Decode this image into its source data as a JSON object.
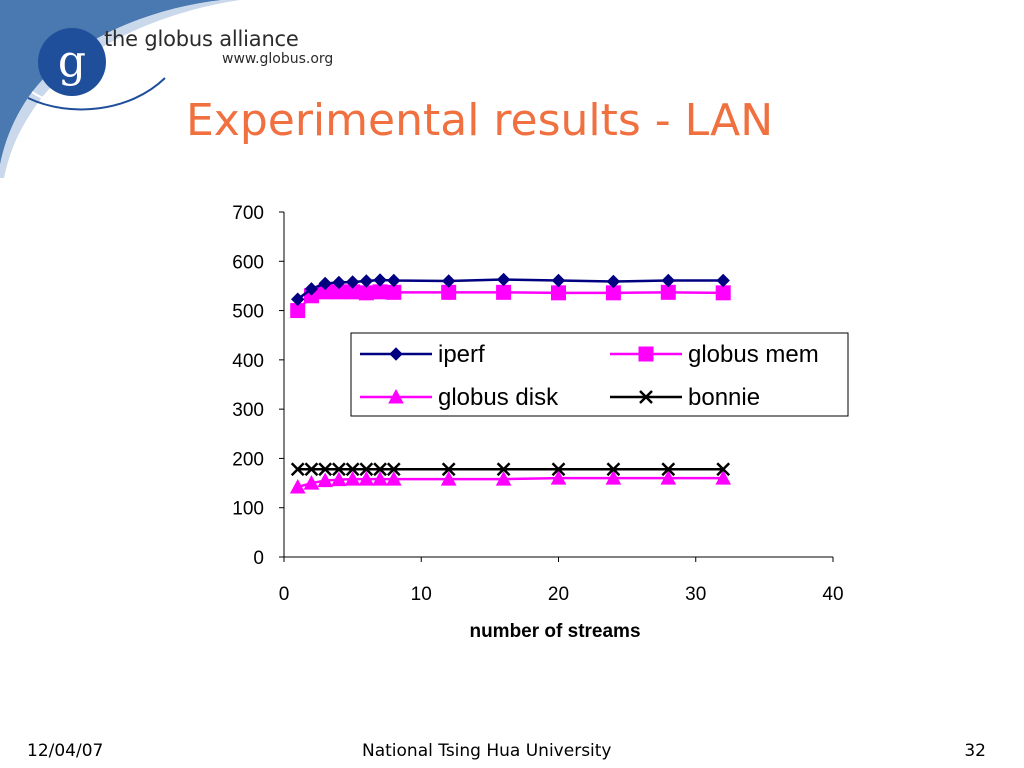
{
  "header": {
    "org_name": "the globus alliance",
    "org_url": "www.globus.org",
    "logo_letter": "g",
    "logo_icon": "globus-swirl-logo"
  },
  "slide_title": "Experimental results - LAN",
  "footer": {
    "date": "12/04/07",
    "organization": "National Tsing Hua University",
    "page_number": "32"
  },
  "colors": {
    "title": "#f07040",
    "corner_blue": "#4a78b0",
    "logo_blue": "#1f4f9a"
  },
  "chart_data": {
    "type": "line",
    "title": "",
    "xlabel": "number of streams",
    "ylabel": "",
    "xlim": [
      0,
      40
    ],
    "ylim": [
      0,
      700
    ],
    "xticks": [
      "0",
      "10",
      "20",
      "30",
      "40"
    ],
    "yticks": [
      "0",
      "100",
      "200",
      "300",
      "400",
      "500",
      "600",
      "700"
    ],
    "grid": false,
    "legend_position": "inside-center-right",
    "legend_columns": 2,
    "series": [
      {
        "name": "iperf",
        "color": "#000080",
        "marker": "diamond",
        "x": [
          1,
          2,
          3,
          4,
          5,
          6,
          7,
          8,
          12,
          16,
          20,
          24,
          28,
          32
        ],
        "y": [
          523,
          544,
          555,
          557,
          558,
          560,
          562,
          561,
          560,
          563,
          561,
          559,
          561,
          561
        ]
      },
      {
        "name": "globus mem",
        "color": "#ff00ff",
        "marker": "square",
        "x": [
          1,
          2,
          3,
          4,
          5,
          6,
          7,
          8,
          12,
          16,
          20,
          24,
          28,
          32
        ],
        "y": [
          500,
          530,
          538,
          538,
          538,
          536,
          538,
          537,
          537,
          537,
          536,
          536,
          537,
          536
        ]
      },
      {
        "name": "globus disk",
        "color": "#ff00ff",
        "marker": "triangle",
        "x": [
          1,
          2,
          3,
          4,
          5,
          6,
          7,
          8,
          12,
          16,
          20,
          24,
          28,
          32
        ],
        "y": [
          142,
          150,
          155,
          157,
          158,
          158,
          158,
          158,
          158,
          158,
          160,
          160,
          160,
          160
        ]
      },
      {
        "name": "bonnie",
        "color": "#000000",
        "marker": "x",
        "x": [
          1,
          2,
          3,
          4,
          5,
          6,
          7,
          8,
          12,
          16,
          20,
          24,
          28,
          32
        ],
        "y": [
          178,
          178,
          178,
          178,
          178,
          178,
          178,
          178,
          178,
          178,
          178,
          178,
          178,
          178
        ]
      }
    ]
  }
}
